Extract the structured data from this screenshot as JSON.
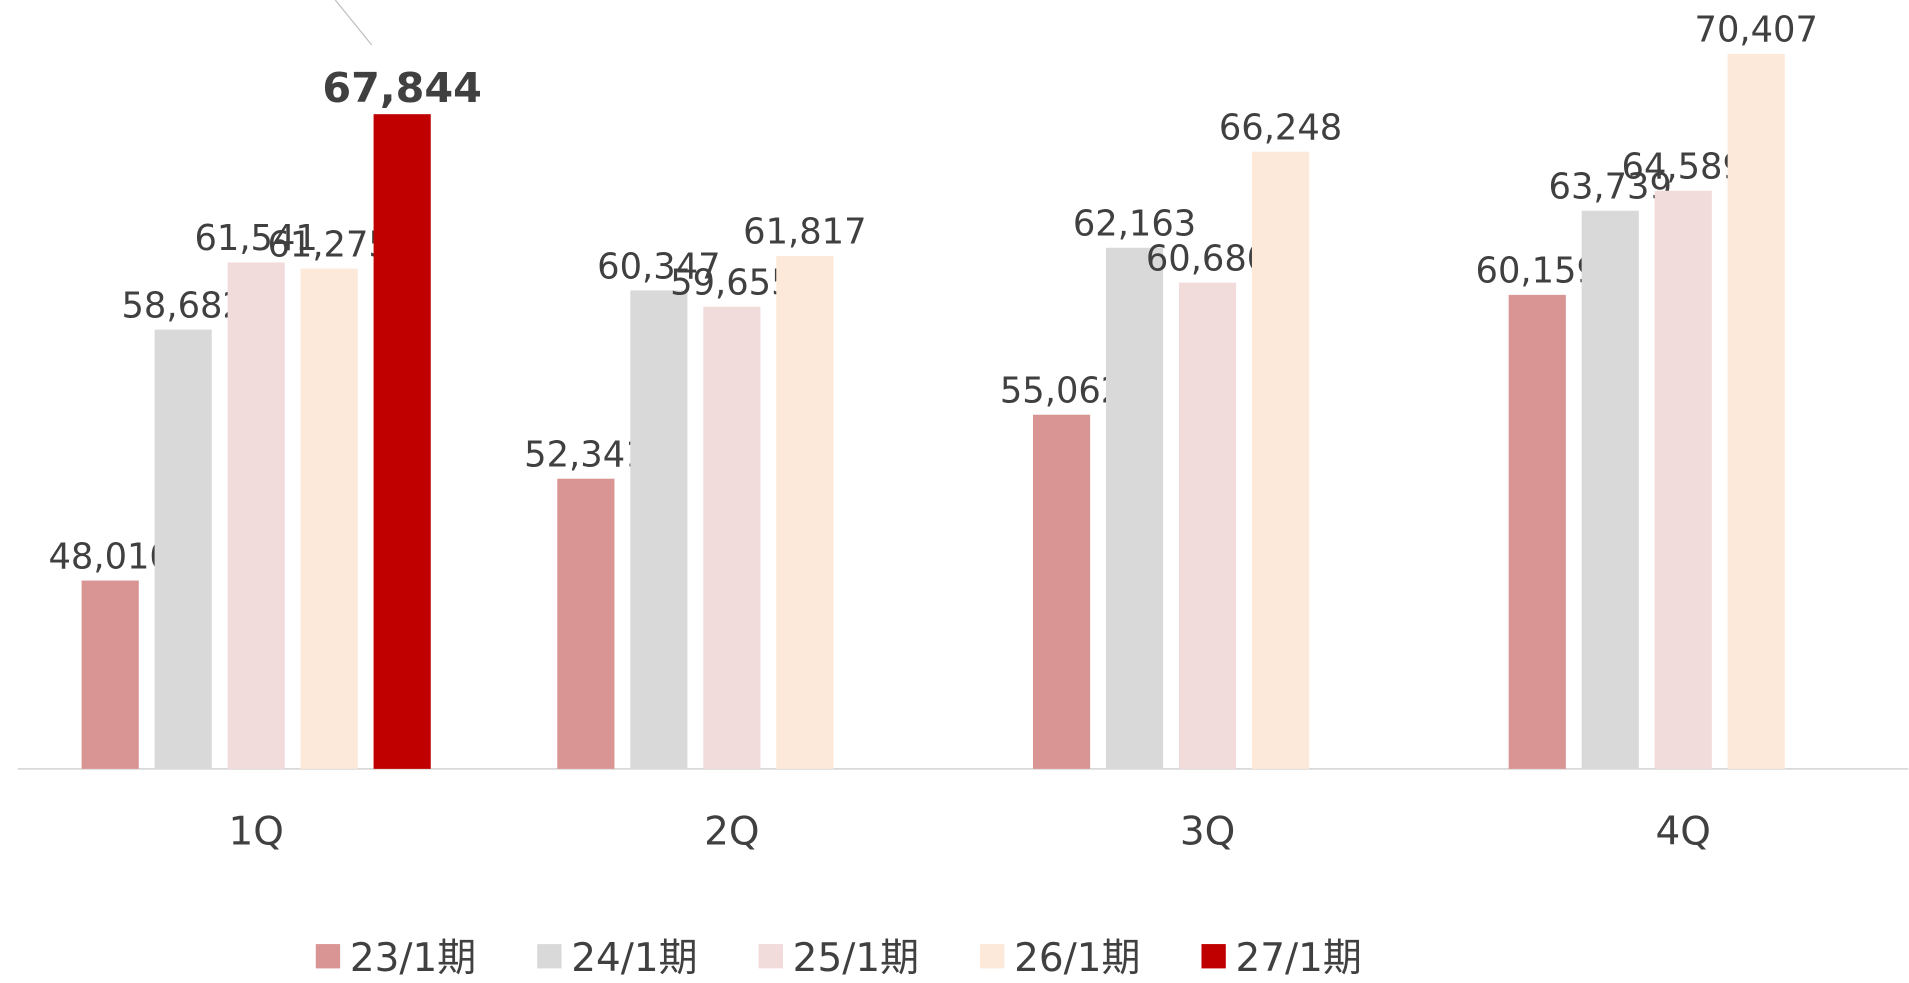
{
  "chart_data": {
    "type": "bar",
    "categories": [
      "1Q",
      "2Q",
      "3Q",
      "4Q"
    ],
    "series": [
      {
        "name": "23/1期",
        "color": "#d99594",
        "values": [
          48010,
          52341,
          55062,
          60159
        ],
        "value_labels": [
          "48,010",
          "52,341",
          "55,062",
          "60,159"
        ]
      },
      {
        "name": "24/1期",
        "color": "#d9d9d9",
        "values": [
          58682,
          60347,
          62163,
          63739
        ],
        "value_labels": [
          "58,682",
          "60,347",
          "62,163",
          "63,739"
        ]
      },
      {
        "name": "25/1期",
        "color": "#f2dcdb",
        "values": [
          61541,
          59655,
          60680,
          64589
        ],
        "value_labels": [
          "61,541",
          "59,655",
          "60,680",
          "64,589"
        ]
      },
      {
        "name": "26/1期",
        "color": "#fde9d9",
        "values": [
          61275,
          61817,
          66248,
          70407
        ],
        "value_labels": [
          "61,275",
          "61,817",
          "66,248",
          "70,407"
        ]
      },
      {
        "name": "27/1期",
        "color": "#c00000",
        "values": [
          67844,
          null,
          null,
          null
        ],
        "value_labels": [
          "67,844",
          null,
          null,
          null
        ]
      }
    ],
    "ylim": [
      40000,
      72700
    ]
  }
}
